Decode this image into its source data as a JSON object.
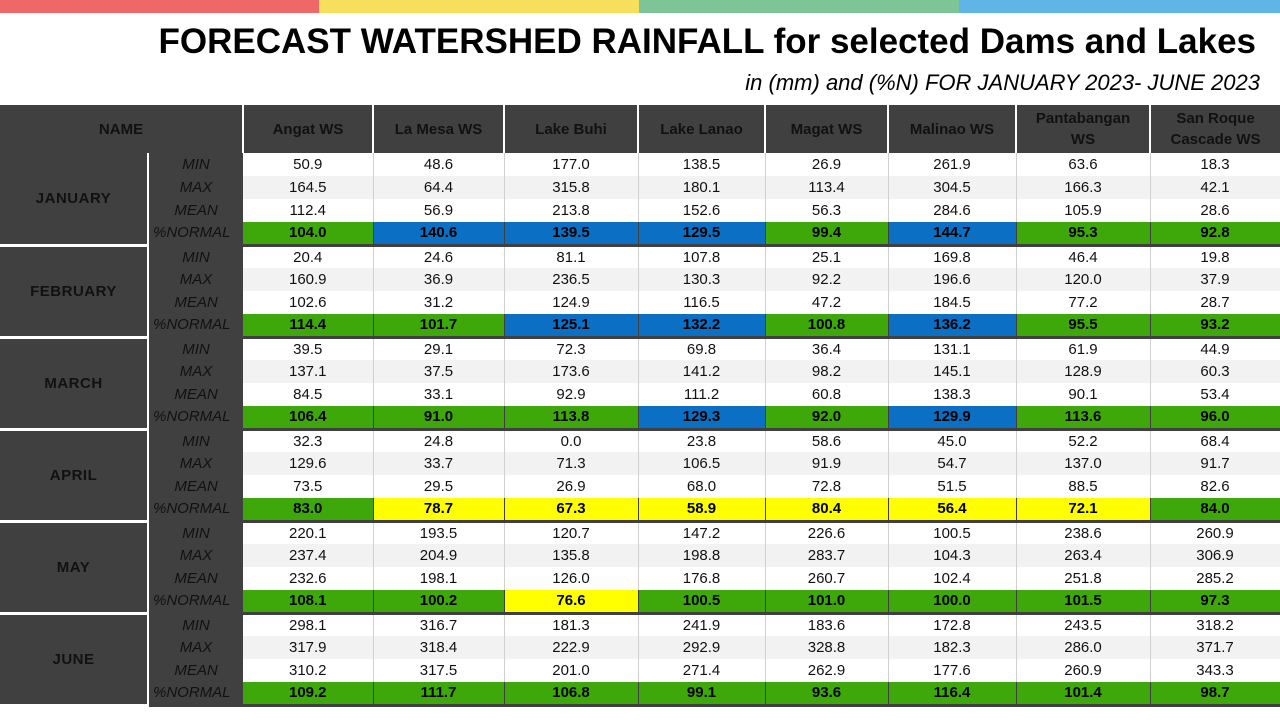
{
  "header": {
    "title": "FORECAST WATERSHED RAINFALL  for selected Dams and Lakes",
    "subtitle": "in (mm) and (%N) FOR JANUARY 2023- JUNE 2023"
  },
  "colors": {
    "topbar": [
      "#ef6868",
      "#f5df5d",
      "#7dc497",
      "#5eb5e6"
    ],
    "above_normal": "#0b6fc4",
    "near_normal": "#3ea80a",
    "below_normal": "#ffff00",
    "header_bg": "#404040"
  },
  "table": {
    "name_header": "NAME",
    "columns": [
      "Angat WS",
      "La Mesa WS",
      "Lake Buhi",
      "Lake Lanao",
      "Magat WS",
      "Malinao WS",
      "Pantabangan WS",
      "San Roque Cascade WS"
    ],
    "stat_labels": [
      "MIN",
      "MAX",
      "MEAN",
      "%NORMAL"
    ],
    "months": [
      {
        "name": "JANUARY",
        "min": [
          "50.9",
          "48.6",
          "177.0",
          "138.5",
          "26.9",
          "261.9",
          "63.6",
          "18.3"
        ],
        "max": [
          "164.5",
          "64.4",
          "315.8",
          "180.1",
          "113.4",
          "304.5",
          "166.3",
          "42.1"
        ],
        "mean": [
          "112.4",
          "56.9",
          "213.8",
          "152.6",
          "56.3",
          "284.6",
          "105.9",
          "28.6"
        ],
        "normal": [
          "104.0",
          "140.6",
          "139.5",
          "129.5",
          "99.4",
          "144.7",
          "95.3",
          "92.8"
        ],
        "normal_colors": [
          "green",
          "blue",
          "blue",
          "blue",
          "green",
          "blue",
          "green",
          "green"
        ]
      },
      {
        "name": "FEBRUARY",
        "min": [
          "20.4",
          "24.6",
          "81.1",
          "107.8",
          "25.1",
          "169.8",
          "46.4",
          "19.8"
        ],
        "max": [
          "160.9",
          "36.9",
          "236.5",
          "130.3",
          "92.2",
          "196.6",
          "120.0",
          "37.9"
        ],
        "mean": [
          "102.6",
          "31.2",
          "124.9",
          "116.5",
          "47.2",
          "184.5",
          "77.2",
          "28.7"
        ],
        "normal": [
          "114.4",
          "101.7",
          "125.1",
          "132.2",
          "100.8",
          "136.2",
          "95.5",
          "93.2"
        ],
        "normal_colors": [
          "green",
          "green",
          "blue",
          "blue",
          "green",
          "blue",
          "green",
          "green"
        ]
      },
      {
        "name": "MARCH",
        "min": [
          "39.5",
          "29.1",
          "72.3",
          "69.8",
          "36.4",
          "131.1",
          "61.9",
          "44.9"
        ],
        "max": [
          "137.1",
          "37.5",
          "173.6",
          "141.2",
          "98.2",
          "145.1",
          "128.9",
          "60.3"
        ],
        "mean": [
          "84.5",
          "33.1",
          "92.9",
          "111.2",
          "60.8",
          "138.3",
          "90.1",
          "53.4"
        ],
        "normal": [
          "106.4",
          "91.0",
          "113.8",
          "129.3",
          "92.0",
          "129.9",
          "113.6",
          "96.0"
        ],
        "normal_colors": [
          "green",
          "green",
          "green",
          "blue",
          "green",
          "blue",
          "green",
          "green"
        ]
      },
      {
        "name": "APRIL",
        "min": [
          "32.3",
          "24.8",
          "0.0",
          "23.8",
          "58.6",
          "45.0",
          "52.2",
          "68.4"
        ],
        "max": [
          "129.6",
          "33.7",
          "71.3",
          "106.5",
          "91.9",
          "54.7",
          "137.0",
          "91.7"
        ],
        "mean": [
          "73.5",
          "29.5",
          "26.9",
          "68.0",
          "72.8",
          "51.5",
          "88.5",
          "82.6"
        ],
        "normal": [
          "83.0",
          "78.7",
          "67.3",
          "58.9",
          "80.4",
          "56.4",
          "72.1",
          "84.0"
        ],
        "normal_colors": [
          "green",
          "yellow",
          "yellow",
          "yellow",
          "yellow",
          "yellow",
          "yellow",
          "green"
        ]
      },
      {
        "name": "MAY",
        "min": [
          "220.1",
          "193.5",
          "120.7",
          "147.2",
          "226.6",
          "100.5",
          "238.6",
          "260.9"
        ],
        "max": [
          "237.4",
          "204.9",
          "135.8",
          "198.8",
          "283.7",
          "104.3",
          "263.4",
          "306.9"
        ],
        "mean": [
          "232.6",
          "198.1",
          "126.0",
          "176.8",
          "260.7",
          "102.4",
          "251.8",
          "285.2"
        ],
        "normal": [
          "108.1",
          "100.2",
          "76.6",
          "100.5",
          "101.0",
          "100.0",
          "101.5",
          "97.3"
        ],
        "normal_colors": [
          "green",
          "green",
          "yellow",
          "green",
          "green",
          "green",
          "green",
          "green"
        ]
      },
      {
        "name": "JUNE",
        "min": [
          "298.1",
          "316.7",
          "181.3",
          "241.9",
          "183.6",
          "172.8",
          "243.5",
          "318.2"
        ],
        "max": [
          "317.9",
          "318.4",
          "222.9",
          "292.9",
          "328.8",
          "182.3",
          "286.0",
          "371.7"
        ],
        "mean": [
          "310.2",
          "317.5",
          "201.0",
          "271.4",
          "262.9",
          "177.6",
          "260.9",
          "343.3"
        ],
        "normal": [
          "109.2",
          "111.7",
          "106.8",
          "99.1",
          "93.6",
          "116.4",
          "101.4",
          "98.7"
        ],
        "normal_colors": [
          "green",
          "green",
          "green",
          "green",
          "green",
          "green",
          "green",
          "green"
        ]
      }
    ]
  }
}
